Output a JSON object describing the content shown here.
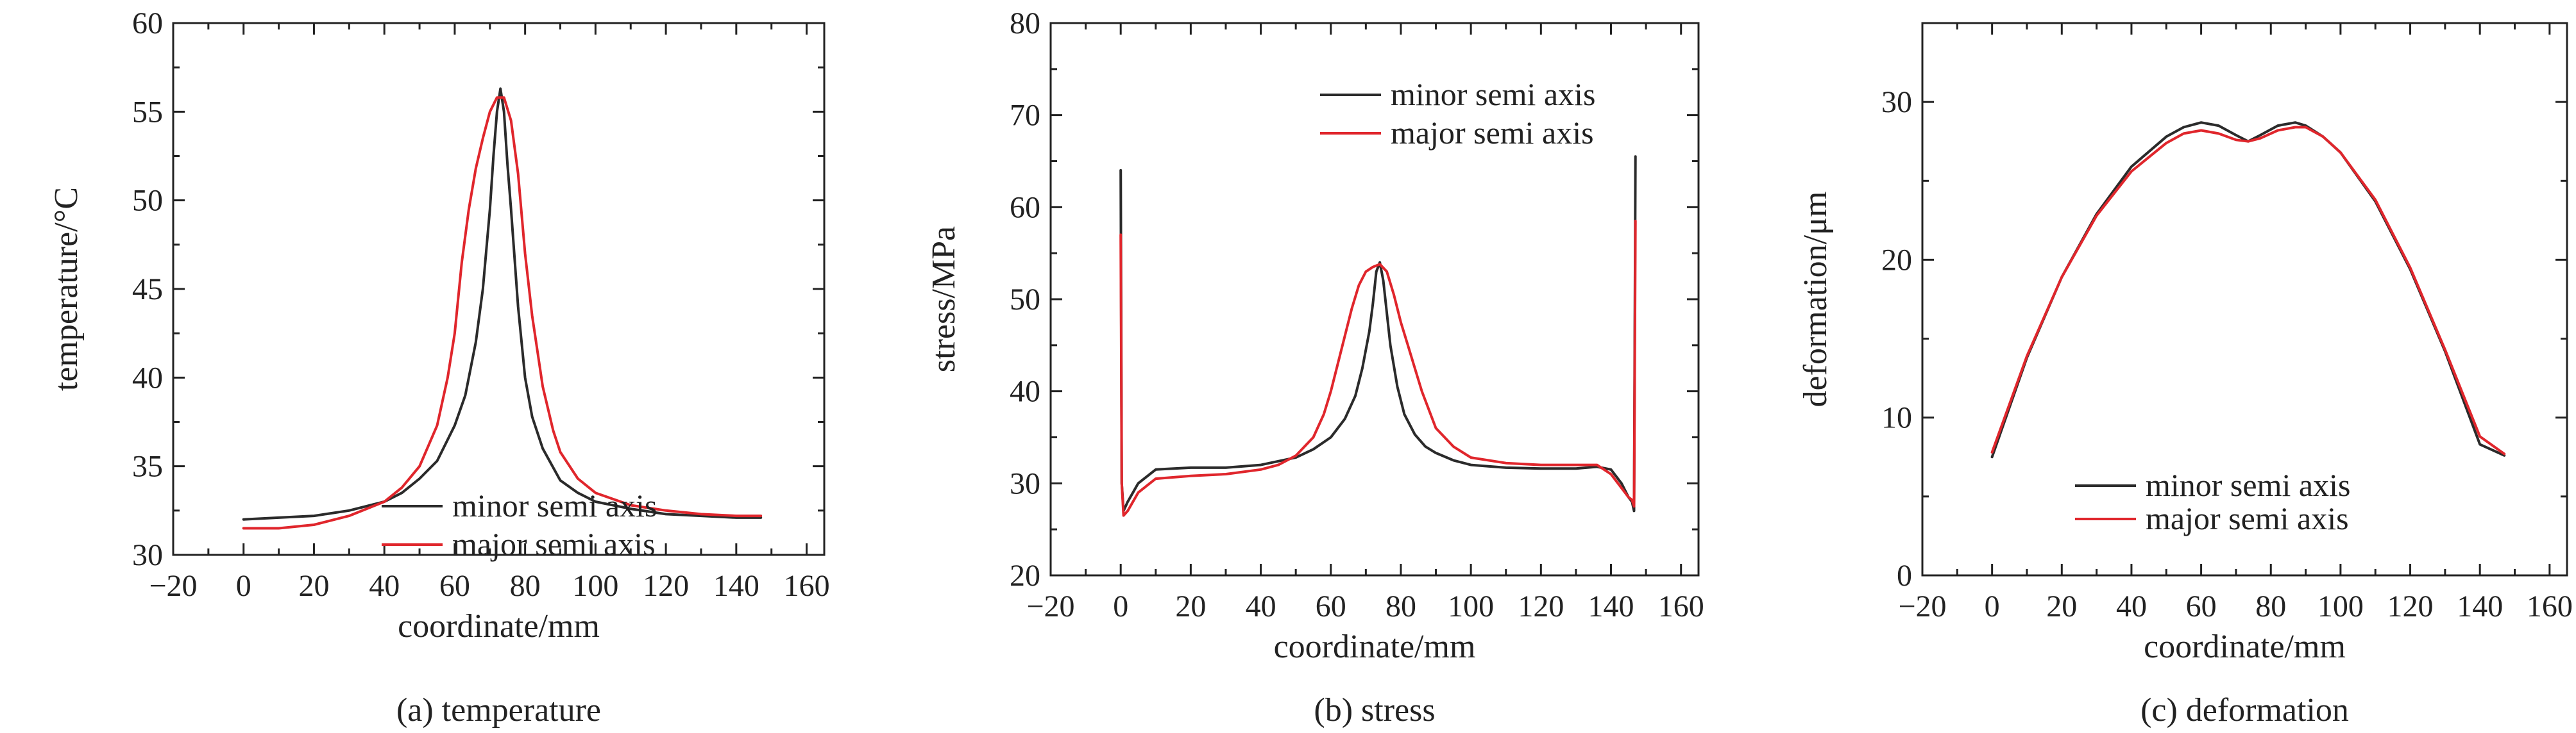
{
  "colors": {
    "minor": "#2b2b2b",
    "major": "#e0262c"
  },
  "chart_data": [
    {
      "type": "line",
      "caption": "(a) temperature",
      "xlabel": "coordinate/mm",
      "ylabel": "temperature/°C",
      "xlim": [
        -20,
        165
      ],
      "ylim": [
        30,
        60
      ],
      "xticks": [
        -20,
        0,
        20,
        40,
        60,
        80,
        100,
        120,
        140,
        160
      ],
      "yticks": [
        30,
        35,
        40,
        45,
        50,
        55,
        60
      ],
      "legend_position": "bottom-right",
      "grid": false,
      "series": [
        {
          "name": "minor semi axis",
          "color": "#2b2b2b",
          "x": [
            0,
            10,
            20,
            30,
            40,
            45,
            50,
            55,
            60,
            63,
            66,
            68,
            70,
            71,
            72,
            73,
            74,
            75,
            76,
            78,
            80,
            82,
            85,
            90,
            95,
            100,
            110,
            120,
            130,
            140,
            147
          ],
          "y": [
            32.0,
            32.1,
            32.2,
            32.5,
            33.0,
            33.5,
            34.3,
            35.3,
            37.3,
            39.0,
            42.0,
            45.0,
            49.5,
            52.5,
            55.0,
            56.3,
            55.0,
            52.0,
            49.5,
            44.0,
            40.0,
            37.8,
            36.0,
            34.2,
            33.5,
            33.0,
            32.6,
            32.3,
            32.2,
            32.1,
            32.1
          ]
        },
        {
          "name": "major semi axis",
          "color": "#e0262c",
          "x": [
            0,
            10,
            20,
            30,
            40,
            45,
            50,
            55,
            58,
            60,
            62,
            64,
            66,
            68,
            70,
            72,
            74,
            76,
            78,
            80,
            82,
            85,
            88,
            90,
            95,
            100,
            110,
            120,
            130,
            140,
            147
          ],
          "y": [
            31.5,
            31.5,
            31.7,
            32.2,
            33.0,
            33.8,
            35.0,
            37.3,
            40.0,
            42.5,
            46.5,
            49.5,
            51.8,
            53.5,
            55.0,
            55.8,
            55.8,
            54.5,
            51.5,
            47.0,
            43.5,
            39.5,
            37.0,
            35.8,
            34.3,
            33.5,
            32.8,
            32.5,
            32.3,
            32.2,
            32.2
          ]
        }
      ]
    },
    {
      "type": "line",
      "caption": "(b) stress",
      "xlabel": "coordinate/mm",
      "ylabel": "stress/MPa",
      "xlim": [
        -20,
        165
      ],
      "ylim": [
        20,
        80
      ],
      "xticks": [
        -20,
        0,
        20,
        40,
        60,
        80,
        100,
        120,
        140,
        160
      ],
      "yticks": [
        20,
        30,
        40,
        50,
        60,
        70,
        80
      ],
      "legend_position": "top-right",
      "grid": false,
      "series": [
        {
          "name": "minor semi axis",
          "color": "#2b2b2b",
          "x": [
            0,
            0.3,
            0.8,
            2,
            5,
            10,
            20,
            30,
            40,
            50,
            55,
            60,
            64,
            67,
            69,
            71,
            72,
            73,
            74,
            75,
            76,
            77,
            79,
            81,
            84,
            87,
            90,
            95,
            100,
            110,
            120,
            130,
            136,
            140,
            143,
            145,
            146,
            146.6,
            147
          ],
          "y": [
            64.0,
            30.0,
            27.0,
            28.0,
            30.0,
            31.5,
            31.7,
            31.7,
            32.0,
            32.8,
            33.7,
            35.0,
            37.0,
            39.5,
            42.5,
            46.5,
            49.5,
            53.0,
            54.0,
            52.0,
            48.5,
            45.0,
            40.5,
            37.5,
            35.3,
            34.0,
            33.3,
            32.5,
            32.0,
            31.7,
            31.6,
            31.6,
            31.8,
            31.5,
            30.0,
            28.5,
            28.0,
            27.0,
            65.5
          ]
        },
        {
          "name": "major semi axis",
          "color": "#e0262c",
          "x": [
            0,
            0.3,
            0.8,
            2,
            5,
            10,
            20,
            30,
            40,
            45,
            50,
            55,
            58,
            60,
            62,
            64,
            66,
            68,
            70,
            72,
            74,
            76,
            78,
            80,
            82,
            84,
            86,
            88,
            90,
            95,
            100,
            110,
            120,
            130,
            136,
            140,
            143,
            145,
            146,
            146.6,
            147
          ],
          "y": [
            57.0,
            30.0,
            26.5,
            27.0,
            29.0,
            30.5,
            30.8,
            31.0,
            31.5,
            32.0,
            33.0,
            35.0,
            37.5,
            40.0,
            43.0,
            46.0,
            49.0,
            51.5,
            53.0,
            53.5,
            53.8,
            53.0,
            50.5,
            47.5,
            45.0,
            42.5,
            40.0,
            38.0,
            36.0,
            34.0,
            32.8,
            32.2,
            32.0,
            32.0,
            32.0,
            31.0,
            29.5,
            28.5,
            28.2,
            27.5,
            58.5
          ]
        }
      ]
    },
    {
      "type": "line",
      "caption": "(c) deformation",
      "xlabel": "coordinate/mm",
      "ylabel": "deformation/μm",
      "xlim": [
        -20,
        165
      ],
      "ylim": [
        0,
        35
      ],
      "xticks": [
        -20,
        0,
        20,
        40,
        60,
        80,
        100,
        120,
        140,
        160
      ],
      "yticks": [
        0,
        10,
        20,
        30
      ],
      "legend_position": "bottom-center",
      "grid": false,
      "series": [
        {
          "name": "minor semi axis",
          "color": "#2b2b2b",
          "x": [
            0,
            10,
            20,
            30,
            40,
            50,
            55,
            60,
            65,
            70,
            73.5,
            77,
            82,
            87,
            90,
            95,
            100,
            110,
            120,
            130,
            140,
            147
          ],
          "y": [
            7.5,
            13.8,
            18.9,
            22.9,
            25.9,
            27.8,
            28.4,
            28.7,
            28.5,
            27.9,
            27.5,
            27.9,
            28.5,
            28.7,
            28.5,
            27.8,
            26.8,
            23.7,
            19.4,
            14.2,
            8.3,
            7.6
          ]
        },
        {
          "name": "major semi axis",
          "color": "#e0262c",
          "x": [
            0,
            10,
            20,
            30,
            40,
            50,
            55,
            60,
            65,
            70,
            73.5,
            77,
            82,
            87,
            90,
            95,
            100,
            110,
            120,
            130,
            140,
            147
          ],
          "y": [
            7.8,
            13.9,
            18.9,
            22.8,
            25.6,
            27.4,
            28.0,
            28.2,
            28.0,
            27.6,
            27.5,
            27.7,
            28.2,
            28.4,
            28.4,
            27.8,
            26.8,
            23.8,
            19.5,
            14.3,
            8.8,
            7.7
          ]
        }
      ]
    }
  ]
}
